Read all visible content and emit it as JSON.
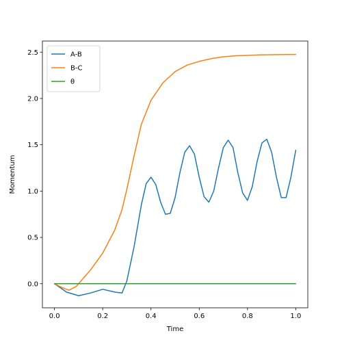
{
  "chart_data": {
    "type": "line",
    "title": "",
    "xlabel": "Time",
    "ylabel": "Momentum",
    "xlim": [
      -0.05,
      1.05
    ],
    "ylim": [
      -0.26,
      2.62
    ],
    "xticks": [
      0.0,
      0.2,
      0.4,
      0.6,
      0.8,
      1.0
    ],
    "xtick_labels": [
      "0.0",
      "0.2",
      "0.4",
      "0.6",
      "0.8",
      "1.0"
    ],
    "yticks": [
      0.0,
      0.5,
      1.0,
      1.5,
      2.0,
      2.5
    ],
    "ytick_labels": [
      "0.0",
      "0.5",
      "1.0",
      "1.5",
      "2.0",
      "2.5"
    ],
    "grid": false,
    "legend_position": "top-left",
    "series": [
      {
        "name": "A-B",
        "color": "#1f77b4",
        "x": [
          0.0,
          0.05,
          0.1,
          0.15,
          0.2,
          0.25,
          0.28,
          0.3,
          0.33,
          0.36,
          0.38,
          0.4,
          0.42,
          0.44,
          0.46,
          0.48,
          0.5,
          0.52,
          0.54,
          0.56,
          0.58,
          0.6,
          0.62,
          0.64,
          0.66,
          0.68,
          0.7,
          0.72,
          0.74,
          0.76,
          0.78,
          0.8,
          0.82,
          0.84,
          0.86,
          0.88,
          0.9,
          0.92,
          0.94,
          0.96,
          0.98,
          1.0
        ],
        "y": [
          0.0,
          -0.09,
          -0.13,
          -0.1,
          -0.06,
          -0.09,
          -0.1,
          0.03,
          0.4,
          0.85,
          1.08,
          1.15,
          1.07,
          0.88,
          0.75,
          0.76,
          0.93,
          1.2,
          1.42,
          1.49,
          1.4,
          1.15,
          0.94,
          0.88,
          1.0,
          1.25,
          1.47,
          1.55,
          1.47,
          1.2,
          0.98,
          0.9,
          1.05,
          1.32,
          1.52,
          1.56,
          1.42,
          1.15,
          0.93,
          0.93,
          1.15,
          1.44
        ]
      },
      {
        "name": "B-C",
        "color": "#ff7f0e",
        "x": [
          0.0,
          0.03,
          0.06,
          0.09,
          0.12,
          0.15,
          0.2,
          0.25,
          0.28,
          0.3,
          0.33,
          0.36,
          0.4,
          0.45,
          0.5,
          0.55,
          0.6,
          0.65,
          0.7,
          0.75,
          0.8,
          0.85,
          0.9,
          0.95,
          1.0
        ],
        "y": [
          0.0,
          -0.04,
          -0.07,
          -0.03,
          0.06,
          0.15,
          0.33,
          0.58,
          0.8,
          1.02,
          1.38,
          1.72,
          1.98,
          2.17,
          2.29,
          2.36,
          2.4,
          2.43,
          2.45,
          2.46,
          2.465,
          2.47,
          2.472,
          2.474,
          2.475
        ]
      },
      {
        "name": "θ",
        "color": "#2ca02c",
        "x": [
          0.0,
          1.0
        ],
        "y": [
          0.0,
          0.0
        ]
      }
    ]
  }
}
